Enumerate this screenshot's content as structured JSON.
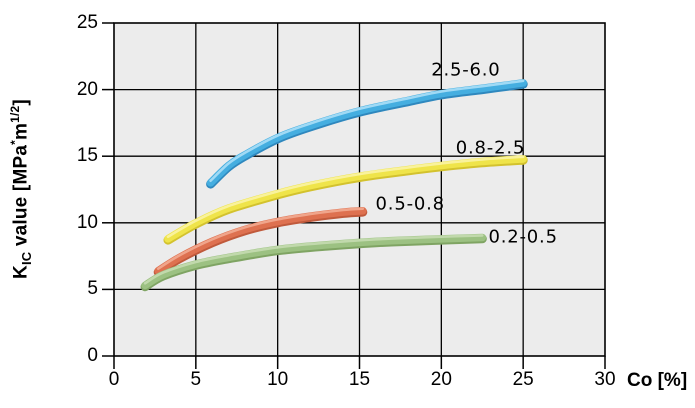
{
  "chart_data": {
    "type": "line",
    "title": "",
    "xlabel": "Co [%]",
    "ylabel": "KIC value [MPa*m1/2]",
    "ylabel_parts": {
      "base": "K",
      "base_sub": "IC",
      "mid": " value [MPa",
      "sup_star": "*",
      "m_unit": "m",
      "sup_exp": "1/2",
      "close": "]"
    },
    "xlim": [
      0,
      30
    ],
    "ylim": [
      0,
      25
    ],
    "x_ticks": [
      "0",
      "5",
      "10",
      "15",
      "20",
      "25",
      "30"
    ],
    "x_tick_values": [
      0,
      5,
      10,
      15,
      20,
      25,
      30
    ],
    "y_ticks": [
      "0",
      "5",
      "10",
      "15",
      "20",
      "25"
    ],
    "y_tick_values": [
      0,
      5,
      10,
      15,
      20,
      25
    ],
    "grid": true,
    "grid_color": "#000000",
    "plot_bg_color": "#ececec",
    "legend_position": "inline-labels",
    "series": [
      {
        "name": "2.5-6.0",
        "color": "#45aee0",
        "color_light": "#a5dcf5",
        "color_dark": "#2f88be",
        "label_anchor": [
          21.5,
          21.5
        ],
        "points": [
          [
            5.9,
            13.0
          ],
          [
            7,
            14.3
          ],
          [
            8,
            15.1
          ],
          [
            10,
            16.4
          ],
          [
            12,
            17.3
          ],
          [
            15,
            18.4
          ],
          [
            18,
            19.2
          ],
          [
            20,
            19.7
          ],
          [
            22.5,
            20.1
          ],
          [
            25,
            20.5
          ]
        ]
      },
      {
        "name": "0.8-2.5",
        "color": "#efe44a",
        "color_light": "#f9f2a0",
        "color_dark": "#d3c22e",
        "label_anchor": [
          23.0,
          15.6
        ],
        "points": [
          [
            3.3,
            8.8
          ],
          [
            5,
            10.0
          ],
          [
            7,
            11.1
          ],
          [
            10,
            12.2
          ],
          [
            12,
            12.8
          ],
          [
            15,
            13.5
          ],
          [
            18,
            14.0
          ],
          [
            20,
            14.3
          ],
          [
            22.5,
            14.6
          ],
          [
            25,
            14.8
          ]
        ]
      },
      {
        "name": "0.5-0.8",
        "color": "#de7150",
        "color_light": "#f0a88e",
        "color_dark": "#c05a3c",
        "label_anchor": [
          18.1,
          11.4
        ],
        "points": [
          [
            2.7,
            6.4
          ],
          [
            4,
            7.4
          ],
          [
            6,
            8.6
          ],
          [
            8,
            9.5
          ],
          [
            10,
            10.1
          ],
          [
            12,
            10.5
          ],
          [
            14,
            10.8
          ],
          [
            15.2,
            10.9
          ]
        ]
      },
      {
        "name": "0.2-0.5",
        "color": "#9cc182",
        "color_light": "#c3daae",
        "color_dark": "#7fa463",
        "label_anchor": [
          25.0,
          8.9
        ],
        "points": [
          [
            1.9,
            5.3
          ],
          [
            3,
            6.1
          ],
          [
            5,
            6.9
          ],
          [
            7,
            7.4
          ],
          [
            10,
            8.0
          ],
          [
            13,
            8.35
          ],
          [
            16,
            8.6
          ],
          [
            19,
            8.75
          ],
          [
            22.5,
            8.9
          ]
        ]
      }
    ]
  }
}
